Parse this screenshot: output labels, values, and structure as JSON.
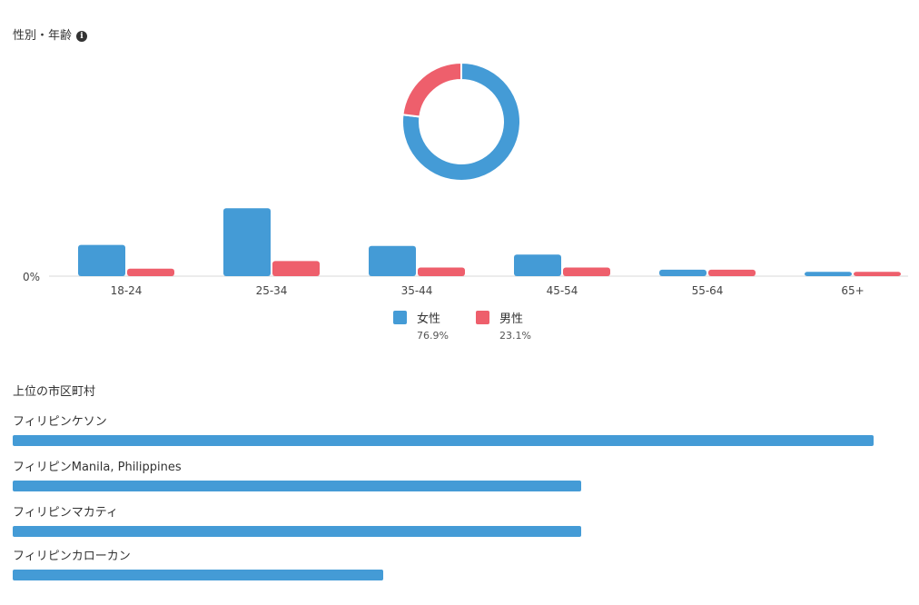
{
  "gender_section": {
    "title": "性別・年齢",
    "info_icon": "info-icon"
  },
  "colors": {
    "female": "#449bd6",
    "male": "#ee5f6c",
    "baseline": "#d9d9d9",
    "axis_text": "#444444"
  },
  "chart_data": [
    {
      "type": "pie",
      "subtype": "donut",
      "labels": [
        "女性",
        "男性"
      ],
      "values": [
        76.9,
        23.1
      ],
      "unit": "%"
    },
    {
      "type": "bar",
      "categories": [
        "18-24",
        "25-34",
        "35-44",
        "45-54",
        "55-64",
        "65+"
      ],
      "series": [
        {
          "name": "女性",
          "values": [
            14.5,
            31.5,
            14.0,
            10.0,
            3.0,
            2.0
          ]
        },
        {
          "name": "男性",
          "values": [
            3.5,
            7.0,
            4.0,
            4.0,
            3.0,
            2.0
          ]
        }
      ],
      "ytick_label": "0%",
      "legend": [
        {
          "label": "女性",
          "value": "76.9%"
        },
        {
          "label": "男性",
          "value": "23.1%"
        }
      ],
      "legend_position": "bottom-center",
      "grid": false
    },
    {
      "type": "bar",
      "orientation": "horizontal",
      "title": "上位の市区町村",
      "categories": [
        "フィリピンケソン",
        "フィリピンManila, Philippines",
        "フィリピンマカティ",
        "フィリピンカローカン"
      ],
      "values": [
        100,
        66,
        66,
        43
      ],
      "unit": "relative share (no value printed)"
    }
  ]
}
